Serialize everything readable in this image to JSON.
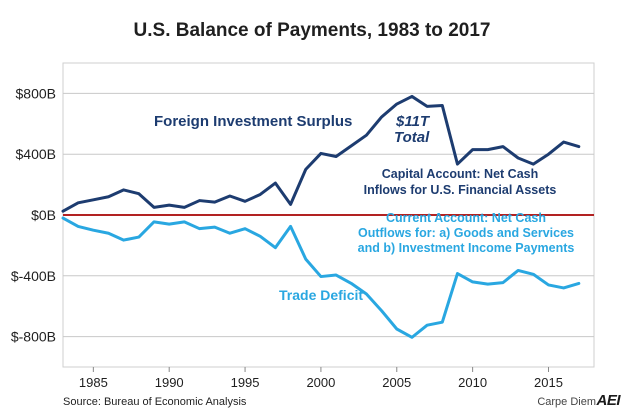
{
  "title": "U.S. Balance of Payments, 1983 to 2017",
  "source": "Source: Bureau of Economic Analysis",
  "brand": "Carpe Diem",
  "brand_logo": "AEI",
  "colors": {
    "surplus": "#1d3c70",
    "deficit": "#29a7e1",
    "zero_line": "#b22222",
    "grid": "#c8c8c8"
  },
  "chart_data": {
    "type": "line",
    "title": "U.S. Balance of Payments, 1983 to 2017",
    "xlabel": "",
    "ylabel": "",
    "xlim": [
      1983,
      2018
    ],
    "ylim": [
      -1000,
      1000
    ],
    "x_ticks": [
      1985,
      1990,
      1995,
      2000,
      2005,
      2010,
      2015
    ],
    "x_tick_labels": [
      "1985",
      "1990",
      "1995",
      "2000",
      "2005",
      "2010",
      "2015"
    ],
    "y_ticks": [
      800,
      400,
      0,
      -400,
      -800
    ],
    "y_tick_labels": [
      "$800B",
      "$400B",
      "$0B",
      "$-400B",
      "$-800B"
    ],
    "grid": true,
    "x": [
      1983,
      1984,
      1985,
      1986,
      1987,
      1988,
      1989,
      1990,
      1991,
      1992,
      1993,
      1994,
      1995,
      1996,
      1997,
      1998,
      1999,
      2000,
      2001,
      2002,
      2003,
      2004,
      2005,
      2006,
      2007,
      2008,
      2009,
      2010,
      2011,
      2012,
      2013,
      2014,
      2015,
      2016,
      2017
    ],
    "series": [
      {
        "values": [
          25,
          80,
          100,
          120,
          165,
          140,
          50,
          65,
          50,
          95,
          85,
          125,
          90,
          135,
          210,
          70,
          300,
          405,
          385,
          455,
          525,
          645,
          730,
          780,
          715,
          720,
          335,
          430,
          430,
          450,
          375,
          335,
          400,
          480,
          450
        ]
      },
      {
        "values": [
          -20,
          -75,
          -100,
          -120,
          -165,
          -145,
          -45,
          -60,
          -45,
          -90,
          -80,
          -120,
          -90,
          -140,
          -215,
          -75,
          -290,
          -405,
          -395,
          -450,
          -520,
          -630,
          -750,
          -805,
          -725,
          -705,
          -385,
          -440,
          -455,
          -445,
          -365,
          -390,
          -460,
          -480,
          -450
        ]
      }
    ],
    "annotations": [
      {
        "text": "Foreign Investment Surplus"
      },
      {
        "text": "$11T"
      },
      {
        "text": "Total"
      },
      {
        "text": "Capital Account: Net Cash"
      },
      {
        "text": "Inflows for U.S. Financial Assets"
      },
      {
        "text": "Current Account: Net Cash"
      },
      {
        "text": "Outflows for: a) Goods and Services"
      },
      {
        "text": "and b) Investment Income Payments"
      },
      {
        "text": "Trade Deficit"
      }
    ]
  }
}
